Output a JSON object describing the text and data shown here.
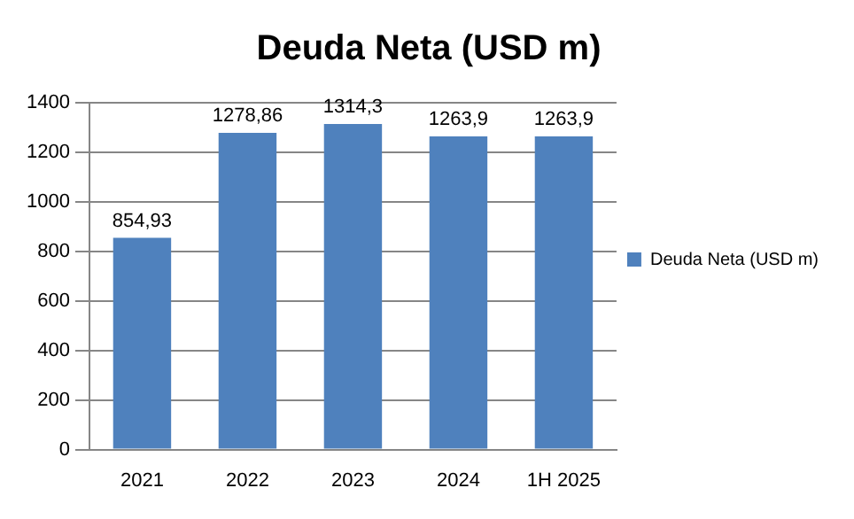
{
  "chart_data": {
    "type": "bar",
    "title": "Deuda Neta (USD m)",
    "categories": [
      "2021",
      "2022",
      "2023",
      "2024",
      "1H 2025"
    ],
    "series": [
      {
        "name": "Deuda Neta (USD m)",
        "color": "#4f81bd",
        "values": [
          854.93,
          1278.86,
          1314.3,
          1263.9,
          1263.9
        ],
        "value_labels": [
          "854,93",
          "1278,86",
          "1314,3",
          "1263,9",
          "1263,9"
        ]
      }
    ],
    "ylim": [
      0,
      1400
    ],
    "yticks": [
      0,
      200,
      400,
      600,
      800,
      1000,
      1200,
      1400
    ],
    "grid": "y",
    "legend": "right"
  }
}
